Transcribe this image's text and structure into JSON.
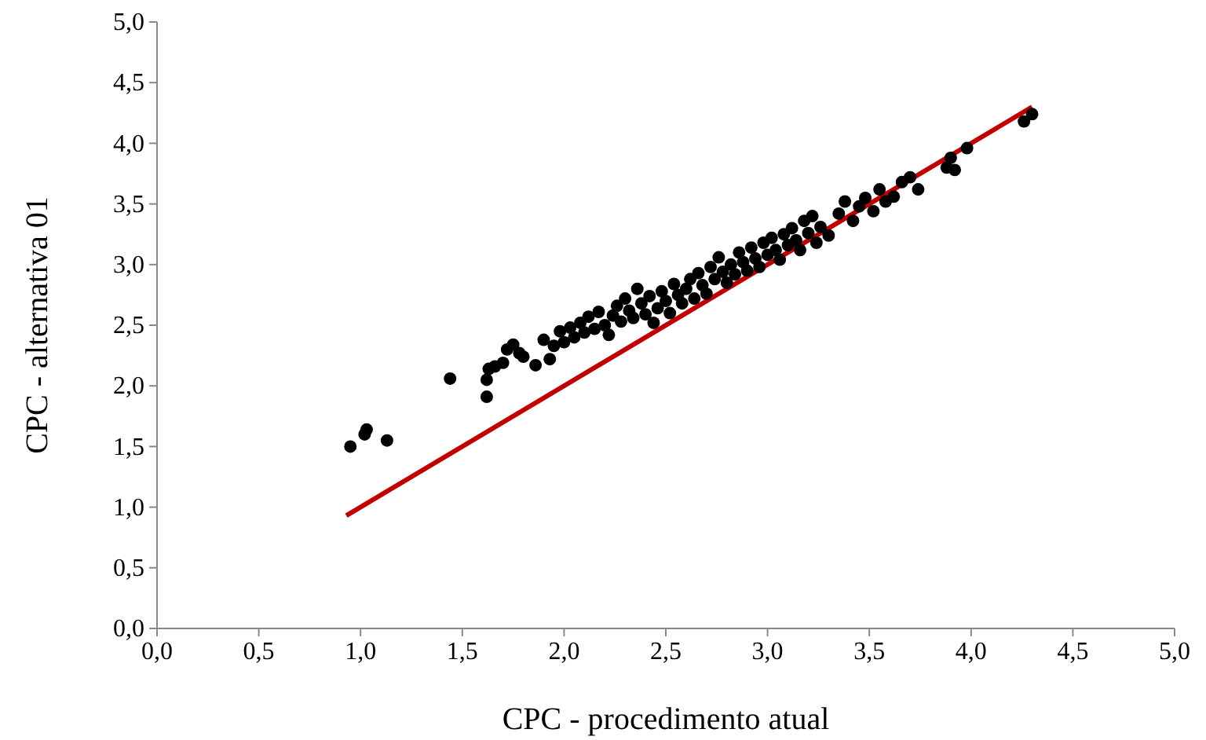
{
  "chart_data": {
    "type": "scatter",
    "xlabel": "CPC - procedimento atual",
    "ylabel": "CPC - alternativa 01",
    "xlim": [
      0,
      5
    ],
    "ylim": [
      0,
      5
    ],
    "xticks": [
      {
        "value": 0,
        "label": "0,0"
      },
      {
        "value": 0.5,
        "label": "0,5"
      },
      {
        "value": 1,
        "label": "1,0"
      },
      {
        "value": 1.5,
        "label": "1,5"
      },
      {
        "value": 2,
        "label": "2,0"
      },
      {
        "value": 2.5,
        "label": "2,5"
      },
      {
        "value": 3,
        "label": "3,0"
      },
      {
        "value": 3.5,
        "label": "3,5"
      },
      {
        "value": 4,
        "label": "4,0"
      },
      {
        "value": 4.5,
        "label": "4,5"
      },
      {
        "value": 5,
        "label": "5,0"
      }
    ],
    "yticks": [
      {
        "value": 0,
        "label": "0,0"
      },
      {
        "value": 0.5,
        "label": "0,5"
      },
      {
        "value": 1,
        "label": "1,0"
      },
      {
        "value": 1.5,
        "label": "1,5"
      },
      {
        "value": 2,
        "label": "2,0"
      },
      {
        "value": 2.5,
        "label": "2,5"
      },
      {
        "value": 3,
        "label": "3,0"
      },
      {
        "value": 3.5,
        "label": "3,5"
      },
      {
        "value": 4,
        "label": "4,0"
      },
      {
        "value": 4.5,
        "label": "4,5"
      },
      {
        "value": 5,
        "label": "5,0"
      }
    ],
    "grid": false,
    "marker": "circle",
    "series": [
      {
        "type": "line",
        "marker": "none",
        "color": "#c00000",
        "x": [
          0.93,
          4.3
        ],
        "values": [
          0.93,
          4.3
        ]
      },
      {
        "color": "#000000",
        "x": [
          0.95,
          1.02,
          1.03,
          1.13,
          1.44,
          1.62,
          1.62,
          1.63,
          1.66,
          1.7,
          1.72,
          1.75,
          1.78,
          1.8,
          1.86,
          1.9,
          1.93,
          1.95,
          1.98,
          2.0,
          2.03,
          2.05,
          2.08,
          2.1,
          2.12,
          2.15,
          2.17,
          2.2,
          2.22,
          2.24,
          2.26,
          2.28,
          2.3,
          2.32,
          2.34,
          2.36,
          2.38,
          2.4,
          2.42,
          2.44,
          2.46,
          2.48,
          2.5,
          2.52,
          2.54,
          2.56,
          2.58,
          2.6,
          2.62,
          2.64,
          2.66,
          2.68,
          2.7,
          2.72,
          2.74,
          2.76,
          2.78,
          2.8,
          2.82,
          2.84,
          2.86,
          2.88,
          2.9,
          2.92,
          2.94,
          2.96,
          2.98,
          3.0,
          3.02,
          3.04,
          3.06,
          3.08,
          3.1,
          3.12,
          3.14,
          3.16,
          3.18,
          3.2,
          3.22,
          3.24,
          3.26,
          3.3,
          3.35,
          3.38,
          3.42,
          3.45,
          3.48,
          3.52,
          3.55,
          3.58,
          3.62,
          3.66,
          3.7,
          3.74,
          3.88,
          3.9,
          3.92,
          3.98,
          4.26,
          4.3
        ],
        "values": [
          1.5,
          1.6,
          1.64,
          1.55,
          2.06,
          1.91,
          2.05,
          2.14,
          2.16,
          2.19,
          2.3,
          2.34,
          2.27,
          2.24,
          2.17,
          2.38,
          2.22,
          2.33,
          2.45,
          2.36,
          2.48,
          2.4,
          2.52,
          2.44,
          2.57,
          2.47,
          2.61,
          2.5,
          2.42,
          2.58,
          2.66,
          2.53,
          2.72,
          2.62,
          2.56,
          2.8,
          2.68,
          2.59,
          2.74,
          2.52,
          2.64,
          2.78,
          2.7,
          2.6,
          2.84,
          2.75,
          2.68,
          2.8,
          2.88,
          2.72,
          2.93,
          2.83,
          2.76,
          2.98,
          2.88,
          3.06,
          2.94,
          2.85,
          3.0,
          2.92,
          3.1,
          3.02,
          2.95,
          3.14,
          3.05,
          2.98,
          3.18,
          3.08,
          3.22,
          3.12,
          3.04,
          3.25,
          3.16,
          3.3,
          3.2,
          3.12,
          3.36,
          3.26,
          3.4,
          3.18,
          3.31,
          3.24,
          3.42,
          3.52,
          3.36,
          3.48,
          3.55,
          3.44,
          3.62,
          3.52,
          3.56,
          3.68,
          3.72,
          3.62,
          3.8,
          3.88,
          3.78,
          3.96,
          4.18,
          4.24
        ]
      }
    ]
  }
}
